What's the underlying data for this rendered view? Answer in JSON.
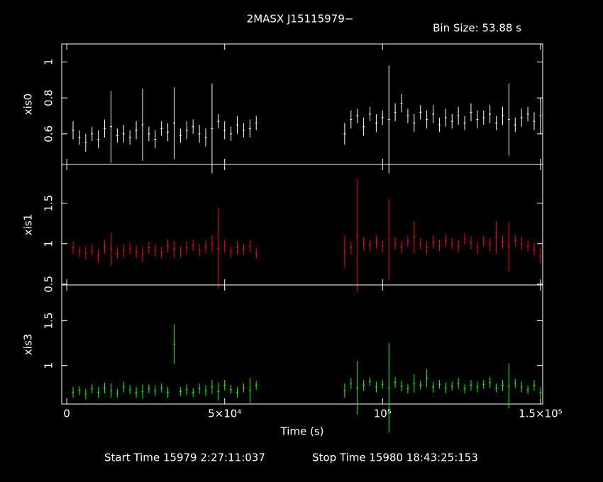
{
  "title": "2MASX J15115979−",
  "bin_size": "Bin Size: 53.88 s",
  "start_time": "Start Time 15979  2:27:11:037",
  "stop_time": "Stop Time 15980 18:43:25:153",
  "chart_data": [
    {
      "type": "scatter",
      "ylabel": "xis0",
      "color": "#ffffff",
      "xlim": [
        -1600,
        150700
      ],
      "ylim": [
        0.43,
        1.1
      ],
      "yticks": [
        0.6,
        0.8,
        1
      ],
      "x": [
        2000,
        4000,
        6000,
        8000,
        10000,
        12000,
        14000,
        16000,
        18000,
        20000,
        22000,
        24000,
        26000,
        28000,
        30000,
        32000,
        34000,
        36000,
        38000,
        40000,
        42000,
        44000,
        46000,
        48000,
        50000,
        52000,
        54000,
        56000,
        58000,
        60000,
        88000,
        90000,
        92000,
        94000,
        96000,
        98000,
        100000,
        102000,
        104000,
        106000,
        108000,
        110000,
        112000,
        114000,
        116000,
        118000,
        120000,
        122000,
        124000,
        126000,
        128000,
        130000,
        132000,
        134000,
        136000,
        138000,
        140000,
        142000,
        144000,
        146000,
        148000,
        150000
      ],
      "values": [
        0.62,
        0.58,
        0.55,
        0.6,
        0.57,
        0.63,
        0.64,
        0.59,
        0.6,
        0.58,
        0.62,
        0.65,
        0.6,
        0.57,
        0.63,
        0.61,
        0.66,
        0.59,
        0.62,
        0.64,
        0.6,
        0.58,
        0.63,
        0.67,
        0.62,
        0.6,
        0.65,
        0.62,
        0.63,
        0.66,
        0.6,
        0.68,
        0.7,
        0.64,
        0.71,
        0.66,
        0.69,
        0.68,
        0.72,
        0.77,
        0.7,
        0.66,
        0.72,
        0.68,
        0.71,
        0.65,
        0.69,
        0.67,
        0.7,
        0.66,
        0.72,
        0.68,
        0.69,
        0.71,
        0.66,
        0.7,
        0.68,
        0.65,
        0.69,
        0.71,
        0.67,
        0.7
      ],
      "errors": [
        0.05,
        0.04,
        0.05,
        0.04,
        0.05,
        0.05,
        0.2,
        0.04,
        0.05,
        0.04,
        0.05,
        0.2,
        0.04,
        0.05,
        0.04,
        0.05,
        0.2,
        0.04,
        0.05,
        0.04,
        0.05,
        0.05,
        0.25,
        0.04,
        0.05,
        0.04,
        0.05,
        0.04,
        0.05,
        0.04,
        0.06,
        0.05,
        0.04,
        0.05,
        0.04,
        0.05,
        0.04,
        0.3,
        0.05,
        0.05,
        0.04,
        0.05,
        0.04,
        0.05,
        0.05,
        0.04,
        0.05,
        0.04,
        0.05,
        0.04,
        0.05,
        0.05,
        0.04,
        0.05,
        0.04,
        0.05,
        0.2,
        0.04,
        0.05,
        0.04,
        0.05,
        0.1
      ]
    },
    {
      "type": "scatter",
      "ylabel": "xis1",
      "color": "#ff0000",
      "xlim": [
        -1600,
        150700
      ],
      "ylim": [
        0.49,
        1.98
      ],
      "yticks": [
        0.5,
        1,
        1.5
      ],
      "x": [
        2000,
        4000,
        6000,
        8000,
        10000,
        12000,
        14000,
        16000,
        18000,
        20000,
        22000,
        24000,
        26000,
        28000,
        30000,
        32000,
        34000,
        36000,
        38000,
        40000,
        42000,
        44000,
        46000,
        48000,
        50000,
        52000,
        54000,
        56000,
        58000,
        60000,
        88000,
        90000,
        92000,
        94000,
        96000,
        98000,
        100000,
        102000,
        104000,
        106000,
        108000,
        110000,
        112000,
        114000,
        116000,
        118000,
        120000,
        122000,
        124000,
        126000,
        128000,
        130000,
        132000,
        134000,
        136000,
        138000,
        140000,
        142000,
        144000,
        146000,
        148000,
        150000
      ],
      "values": [
        0.95,
        0.9,
        0.88,
        0.92,
        0.85,
        0.96,
        0.93,
        0.88,
        0.91,
        0.94,
        0.9,
        0.87,
        0.95,
        0.92,
        0.89,
        0.97,
        0.93,
        0.9,
        0.95,
        0.98,
        0.92,
        0.96,
        1,
        0.94,
        0.97,
        0.9,
        0.95,
        0.93,
        0.97,
        0.88,
        0.9,
        0.95,
        1.1,
        1,
        0.98,
        1.02,
        0.97,
        1.05,
        1,
        0.96,
        1.03,
        1.08,
        1,
        0.95,
        1.02,
        0.98,
        1.04,
        1,
        0.97,
        1.06,
        1.01,
        0.95,
        1.03,
        0.99,
        1.08,
        1.02,
        0.96,
        1.04,
        1,
        0.97,
        0.93,
        0.85
      ],
      "errors": [
        0.08,
        0.07,
        0.08,
        0.07,
        0.08,
        0.08,
        0.2,
        0.07,
        0.08,
        0.07,
        0.08,
        0.1,
        0.07,
        0.08,
        0.07,
        0.08,
        0.1,
        0.07,
        0.08,
        0.07,
        0.08,
        0.08,
        0.1,
        0.5,
        0.08,
        0.07,
        0.08,
        0.07,
        0.08,
        0.07,
        0.2,
        0.08,
        0.7,
        0.08,
        0.07,
        0.08,
        0.07,
        0.5,
        0.08,
        0.08,
        0.07,
        0.2,
        0.07,
        0.08,
        0.08,
        0.07,
        0.08,
        0.07,
        0.08,
        0.07,
        0.08,
        0.08,
        0.07,
        0.08,
        0.2,
        0.08,
        0.3,
        0.07,
        0.08,
        0.07,
        0.08,
        0.1
      ]
    },
    {
      "type": "scatter",
      "ylabel": "xis3",
      "color": "#00ff00",
      "xlim": [
        -1600,
        150700
      ],
      "ylim": [
        0.57,
        1.9
      ],
      "yticks": [
        1,
        1.5
      ],
      "xlabel": "Time (s)",
      "xticks": [
        0,
        {
          "value": 50000,
          "label": "5×10⁴"
        },
        {
          "value": 100000,
          "label": "10⁵"
        },
        {
          "value": 150000,
          "label": "1.5×10⁵"
        }
      ],
      "x": [
        2000,
        4000,
        6000,
        8000,
        10000,
        12000,
        14000,
        16000,
        18000,
        20000,
        22000,
        24000,
        26000,
        28000,
        30000,
        32000,
        34000,
        36000,
        38000,
        40000,
        42000,
        44000,
        46000,
        48000,
        50000,
        52000,
        54000,
        56000,
        58000,
        60000,
        88000,
        90000,
        92000,
        94000,
        96000,
        98000,
        100000,
        102000,
        104000,
        106000,
        108000,
        110000,
        112000,
        114000,
        116000,
        118000,
        120000,
        122000,
        124000,
        126000,
        128000,
        130000,
        132000,
        134000,
        136000,
        138000,
        140000,
        142000,
        144000,
        146000,
        148000,
        150000
      ],
      "values": [
        0.7,
        0.72,
        0.68,
        0.74,
        0.7,
        0.75,
        0.72,
        0.69,
        0.76,
        0.73,
        0.7,
        0.71,
        0.74,
        0.72,
        0.75,
        0.7,
        1.24,
        0.71,
        0.73,
        0.7,
        0.74,
        0.72,
        0.76,
        0.71,
        0.78,
        0.73,
        0.7,
        0.75,
        0.72,
        0.78,
        0.72,
        0.8,
        0.75,
        0.78,
        0.82,
        0.76,
        0.79,
        0.75,
        0.81,
        0.77,
        0.74,
        0.8,
        0.78,
        0.86,
        0.76,
        0.79,
        0.75,
        0.77,
        0.8,
        0.74,
        0.78,
        0.76,
        0.79,
        0.81,
        0.75,
        0.78,
        0.77,
        0.8,
        0.76,
        0.73,
        0.78,
        0.7
      ],
      "errors": [
        0.06,
        0.05,
        0.06,
        0.05,
        0.06,
        0.06,
        0.08,
        0.05,
        0.06,
        0.05,
        0.06,
        0.08,
        0.05,
        0.06,
        0.05,
        0.06,
        0.22,
        0.05,
        0.06,
        0.05,
        0.06,
        0.06,
        0.08,
        0.1,
        0.06,
        0.05,
        0.06,
        0.05,
        0.14,
        0.05,
        0.08,
        0.06,
        0.3,
        0.06,
        0.05,
        0.06,
        0.05,
        0.5,
        0.06,
        0.06,
        0.05,
        0.1,
        0.05,
        0.1,
        0.06,
        0.05,
        0.06,
        0.05,
        0.06,
        0.05,
        0.06,
        0.06,
        0.05,
        0.06,
        0.05,
        0.06,
        0.25,
        0.05,
        0.06,
        0.05,
        0.06,
        0.06
      ]
    }
  ]
}
